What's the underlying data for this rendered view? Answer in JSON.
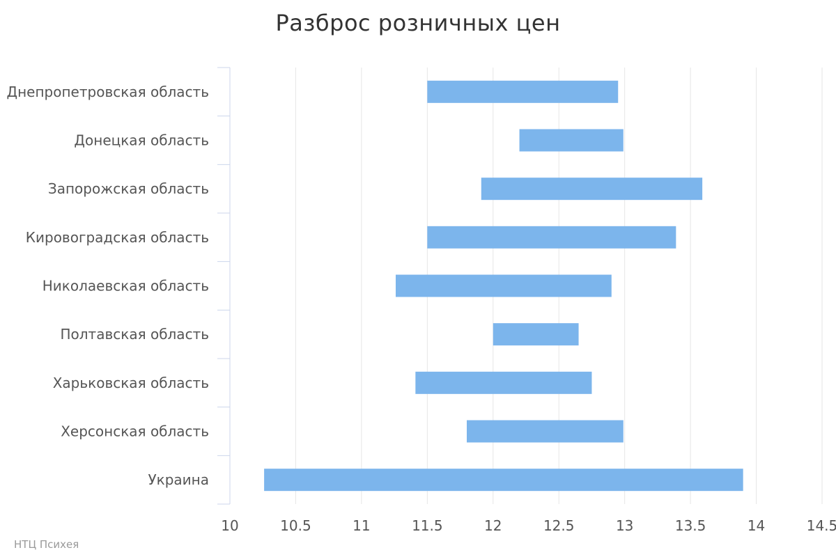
{
  "chart_data": {
    "type": "bar",
    "orientation": "horizontal",
    "title": "Разброс розничных цен",
    "xlabel": "",
    "ylabel": "",
    "categories": [
      "Днепропетровская область",
      "Донецкая область",
      "Запорожская область",
      "Кировоградская область",
      "Николаевская область",
      "Полтавская область",
      "Харьковская область",
      "Херсонская область",
      "Украина"
    ],
    "ranges": [
      [
        11.5,
        12.95
      ],
      [
        12.2,
        12.99
      ],
      [
        11.91,
        13.59
      ],
      [
        11.5,
        13.39
      ],
      [
        11.26,
        12.9
      ],
      [
        12.0,
        12.65
      ],
      [
        11.41,
        12.75
      ],
      [
        11.8,
        12.99
      ],
      [
        10.26,
        13.9
      ]
    ],
    "xlim": [
      10,
      14.5
    ],
    "x_ticks": [
      "10",
      "10.5",
      "11",
      "11.5",
      "12",
      "12.5",
      "13",
      "13.5",
      "14",
      "14.5"
    ],
    "grid": "vertical",
    "legend": "none",
    "bar_color": "#7cb5ec"
  },
  "credits": "НТЦ Психея"
}
